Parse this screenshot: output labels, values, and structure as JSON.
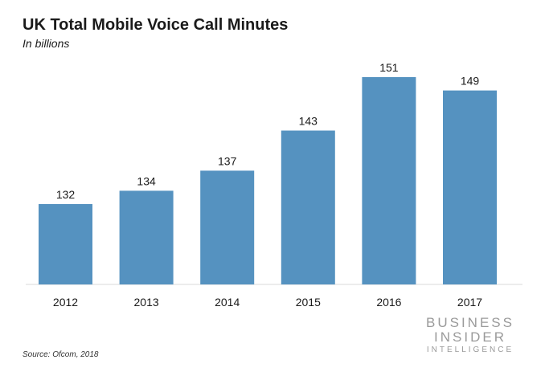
{
  "chart_data": {
    "type": "bar",
    "title": "UK Total Mobile Voice Call Minutes",
    "subtitle": "In billions",
    "categories": [
      "2012",
      "2013",
      "2014",
      "2015",
      "2016",
      "2017"
    ],
    "values": [
      132,
      134,
      137,
      143,
      151,
      149
    ],
    "data_labels": [
      "132",
      "134",
      "137",
      "143",
      "151",
      "149"
    ],
    "xlabel": "",
    "ylabel": "",
    "ylim": [
      120,
      151
    ],
    "grid": false,
    "legend": "none",
    "bar_color": "#5592c0"
  },
  "source": "Source: Ofcom, 2018",
  "logo": {
    "line1": "BUSINESS",
    "line2": "INSIDER",
    "line3": "INTELLIGENCE"
  }
}
